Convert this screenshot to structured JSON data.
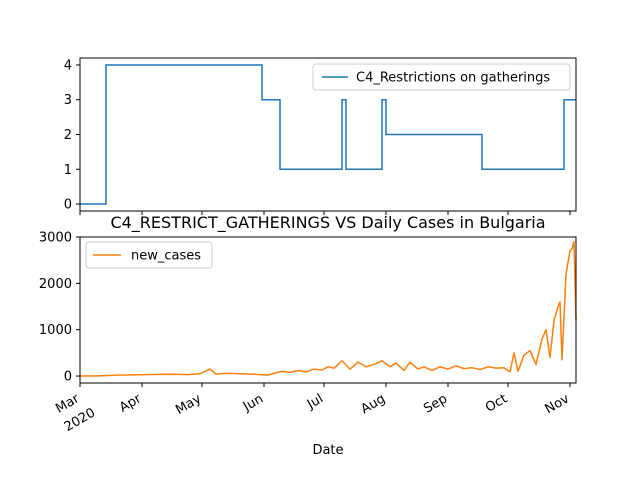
{
  "chart_data": [
    {
      "type": "line",
      "title": "",
      "xlabel": "",
      "ylabel": "",
      "ylim": [
        -0.2,
        4.2
      ],
      "yticks": [
        0,
        1,
        2,
        3,
        4
      ],
      "legend_position": "top-right",
      "grid": false,
      "series": [
        {
          "name": "C4_Restrictions on gatherings",
          "color": "#1f77b4",
          "step": true,
          "x": [
            "2020-03-01",
            "2020-03-14",
            "2020-05-31",
            "2020-06-09",
            "2020-07-10",
            "2020-07-12",
            "2020-07-30",
            "2020-08-01",
            "2020-09-18",
            "2020-10-29",
            "2020-11-04"
          ],
          "y": [
            0,
            4,
            3,
            1,
            3,
            1,
            3,
            2,
            1,
            3,
            3
          ]
        }
      ]
    },
    {
      "type": "line",
      "title": "C4_RESTRICT_GATHERINGS VS Daily Cases in Bulgaria",
      "xlabel": "Date",
      "ylabel": "",
      "ylim": [
        -150,
        3000
      ],
      "yticks": [
        0,
        1000,
        2000,
        3000
      ],
      "legend_position": "top-left",
      "grid": false,
      "xticks": [
        {
          "date": "2020-03-01",
          "label": "Mar",
          "sublabel": "2020"
        },
        {
          "date": "2020-04-01",
          "label": "Apr"
        },
        {
          "date": "2020-05-01",
          "label": "May"
        },
        {
          "date": "2020-06-01",
          "label": "Jun"
        },
        {
          "date": "2020-07-01",
          "label": "Jul"
        },
        {
          "date": "2020-08-01",
          "label": "Aug"
        },
        {
          "date": "2020-09-01",
          "label": "Sep"
        },
        {
          "date": "2020-10-01",
          "label": "Oct"
        },
        {
          "date": "2020-11-01",
          "label": "Nov"
        }
      ],
      "series": [
        {
          "name": "new_cases",
          "color": "#ff7f0e",
          "x": [
            "2020-03-01",
            "2020-03-10",
            "2020-03-20",
            "2020-03-27",
            "2020-04-03",
            "2020-04-10",
            "2020-04-17",
            "2020-04-24",
            "2020-04-30",
            "2020-05-05",
            "2020-05-08",
            "2020-05-13",
            "2020-05-20",
            "2020-05-27",
            "2020-06-03",
            "2020-06-06",
            "2020-06-10",
            "2020-06-14",
            "2020-06-18",
            "2020-06-22",
            "2020-06-26",
            "2020-06-30",
            "2020-07-03",
            "2020-07-06",
            "2020-07-10",
            "2020-07-14",
            "2020-07-18",
            "2020-07-22",
            "2020-07-26",
            "2020-07-30",
            "2020-08-03",
            "2020-08-06",
            "2020-08-10",
            "2020-08-13",
            "2020-08-17",
            "2020-08-20",
            "2020-08-24",
            "2020-08-28",
            "2020-09-01",
            "2020-09-05",
            "2020-09-09",
            "2020-09-13",
            "2020-09-17",
            "2020-09-21",
            "2020-09-25",
            "2020-09-29",
            "2020-10-02",
            "2020-10-04",
            "2020-10-06",
            "2020-10-09",
            "2020-10-12",
            "2020-10-15",
            "2020-10-18",
            "2020-10-20",
            "2020-10-22",
            "2020-10-24",
            "2020-10-26",
            "2020-10-27",
            "2020-10-28",
            "2020-10-30",
            "2020-11-01",
            "2020-11-02",
            "2020-11-03",
            "2020-11-04"
          ],
          "y": [
            0,
            5,
            20,
            25,
            30,
            35,
            40,
            30,
            50,
            150,
            40,
            60,
            50,
            40,
            20,
            60,
            100,
            80,
            120,
            90,
            150,
            130,
            200,
            170,
            330,
            150,
            300,
            200,
            250,
            330,
            200,
            280,
            120,
            300,
            150,
            200,
            120,
            200,
            150,
            220,
            160,
            180,
            140,
            200,
            170,
            180,
            90,
            500,
            100,
            450,
            550,
            250,
            800,
            1000,
            400,
            1200,
            1500,
            1600,
            350,
            2200,
            2700,
            2750,
            2900,
            1200
          ]
        }
      ]
    }
  ]
}
